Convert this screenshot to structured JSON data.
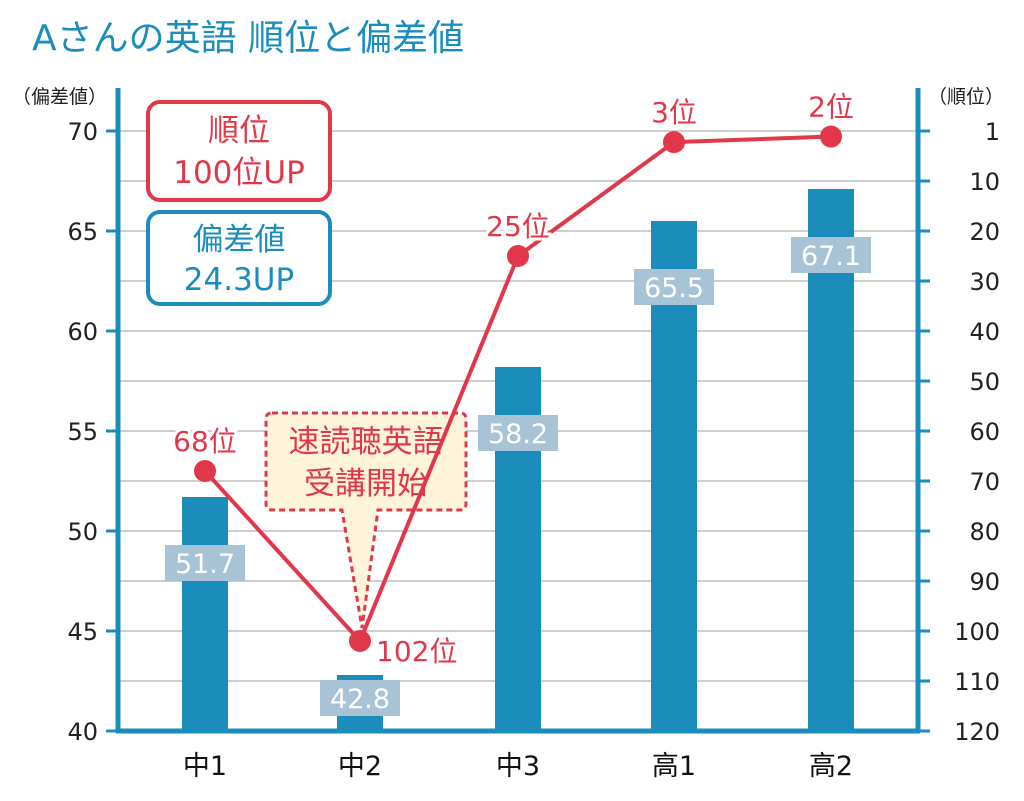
{
  "chart_data": {
    "type": "bar",
    "title": "Aさんの英語 順位と偏差値",
    "categories": [
      "中1",
      "中2",
      "中3",
      "高1",
      "高2"
    ],
    "left_axis": {
      "unit_label": "（偏差値）",
      "ylim": [
        40,
        70
      ],
      "ticks": [
        40,
        45,
        50,
        55,
        60,
        65,
        70
      ]
    },
    "right_axis": {
      "unit_label": "（順位）",
      "inverted": true,
      "ticks": [
        1,
        10,
        20,
        30,
        40,
        50,
        60,
        70,
        80,
        90,
        100,
        110,
        120
      ]
    },
    "series": [
      {
        "type": "bar",
        "values": [
          51.7,
          42.8,
          58.2,
          65.5,
          67.1
        ],
        "labels": [
          "51.7",
          "42.8",
          "58.2",
          "65.5",
          "67.1"
        ],
        "color": "#1a8dba"
      },
      {
        "type": "line",
        "values": [
          68,
          102,
          25,
          3,
          2
        ],
        "labels": [
          "68位",
          "102位",
          "25位",
          "3位",
          "2位"
        ],
        "color": "#e0384a"
      }
    ],
    "annotations": {
      "rank_box": [
        "順位",
        "100位UP"
      ],
      "score_box": [
        "偏差値",
        "24.3UP"
      ],
      "callout": [
        "速読聴英語",
        "受講開始"
      ]
    },
    "grid": true
  },
  "colors": {
    "bar": "#1a8dba",
    "line": "#e0384a",
    "bar_label_bg": "#a9c3d6",
    "callout_bg": "#fdf4d9",
    "grid": "#bdbdbd"
  }
}
